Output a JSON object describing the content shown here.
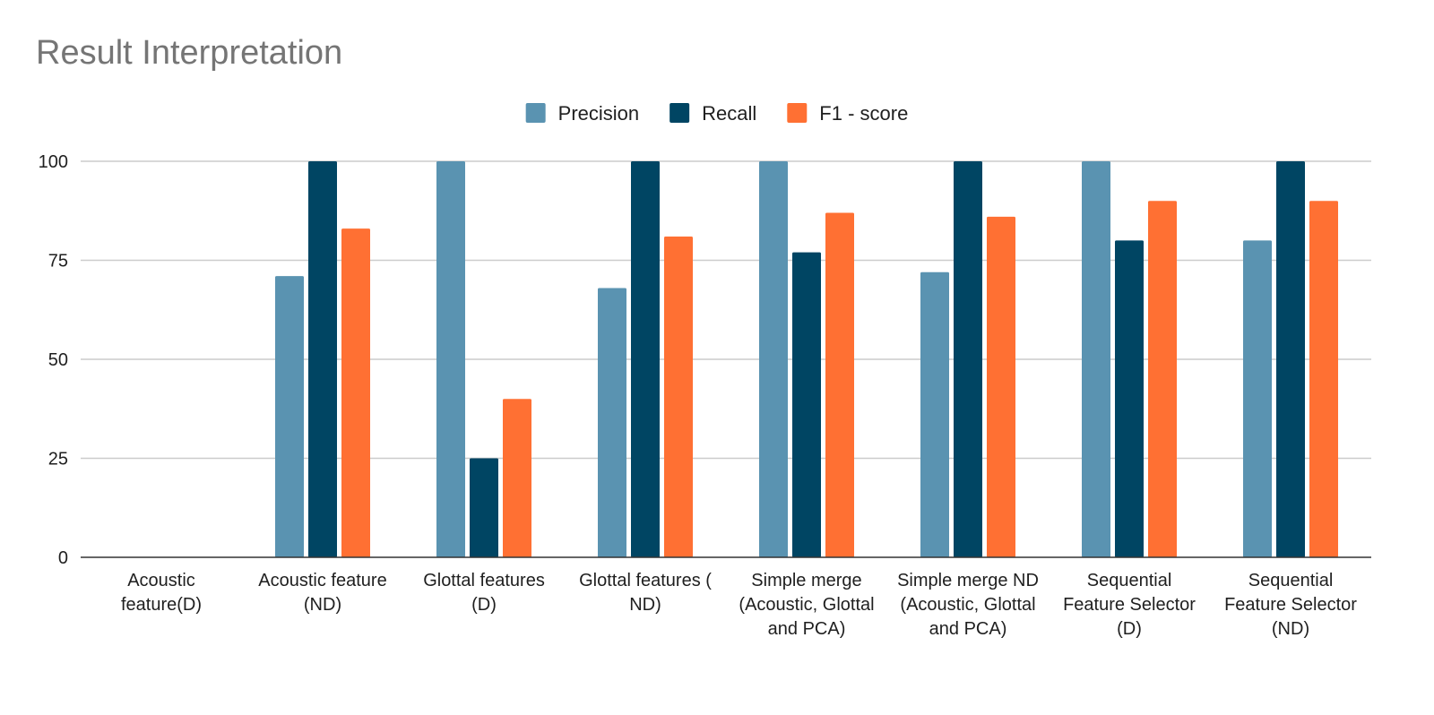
{
  "chart_data": {
    "type": "bar",
    "title": "Result Interpretation",
    "xlabel": "",
    "ylabel": "",
    "ylim": [
      0,
      100
    ],
    "yticks": [
      "0",
      "25",
      "50",
      "75",
      "100"
    ],
    "grid": true,
    "legend_position": "top",
    "categories": [
      "Acoustic feature(D)",
      "Acoustic feature (ND)",
      "Glottal features (D)",
      "Glottal features ( ND)",
      "Simple merge (Acoustic, Glottal and PCA)",
      "Simple merge ND  (Acoustic, Glottal and PCA)",
      "Sequential Feature Selector (D)",
      "Sequential Feature Selector (ND)"
    ],
    "series": [
      {
        "name": "Precision",
        "color": "#5a93b1",
        "values": [
          0,
          71,
          100,
          68,
          100,
          72,
          100,
          80
        ]
      },
      {
        "name": "Recall",
        "color": "#004563",
        "values": [
          0,
          100,
          25,
          100,
          77,
          100,
          80,
          100
        ]
      },
      {
        "name": "F1 - score",
        "color": "#ff7033",
        "values": [
          0,
          83,
          40,
          81,
          87,
          86,
          90,
          90
        ]
      }
    ]
  }
}
